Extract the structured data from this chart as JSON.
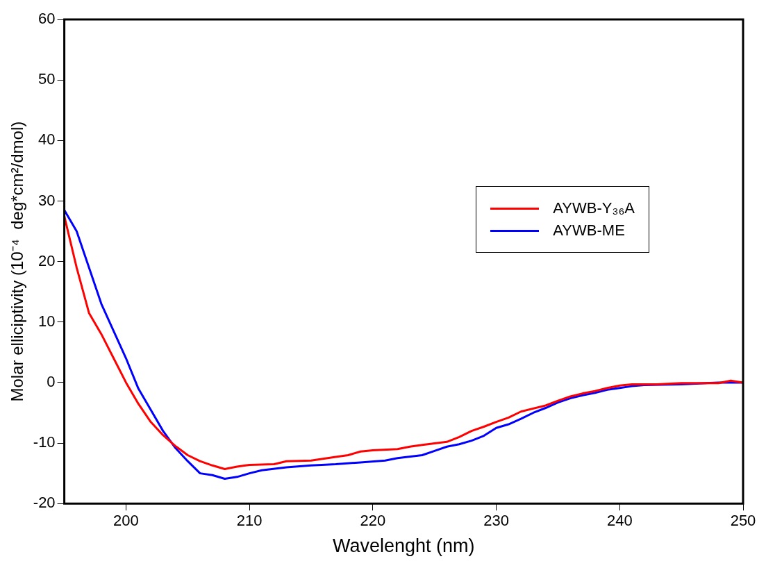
{
  "chart_data": {
    "type": "line",
    "xlabel": "Wavelenght (nm)",
    "ylabel": "Molar elliciptivity (10⁻⁴  deg*cm²/dmol)",
    "xlim": [
      195,
      250
    ],
    "xticks": [
      200,
      210,
      220,
      230,
      240,
      250
    ],
    "ylim": [
      -20,
      60
    ],
    "yticks": [
      -20,
      -10,
      0,
      10,
      20,
      30,
      40,
      50,
      60
    ],
    "grid": false,
    "legend": "right",
    "marker": "none",
    "line_style": "solid",
    "series": [
      {
        "name": "AYWB-Y₃₆A",
        "color": "#ff0000",
        "x": [
          195,
          196,
          197,
          198,
          199,
          200,
          201,
          202,
          203,
          204,
          205,
          206,
          207,
          208,
          209,
          210,
          212,
          213,
          215,
          217,
          218,
          219,
          220,
          222,
          223,
          224,
          226,
          227,
          228,
          229,
          230,
          231,
          232,
          234,
          235,
          236,
          237,
          238,
          239,
          240,
          241,
          243,
          245,
          248,
          249,
          250
        ],
        "values": [
          27.5,
          19,
          11.5,
          8,
          4,
          0,
          -3.5,
          -6.5,
          -8.7,
          -10.5,
          -12,
          -13,
          -13.7,
          -14.3,
          -13.9,
          -13.6,
          -13.5,
          -13,
          -12.9,
          -12.3,
          -12,
          -11.4,
          -11.2,
          -11,
          -10.6,
          -10.3,
          -9.8,
          -9,
          -8,
          -7.3,
          -6.5,
          -5.8,
          -4.8,
          -3.8,
          -3,
          -2.3,
          -1.8,
          -1.4,
          -0.9,
          -0.5,
          -0.3,
          -0.3,
          -0.1,
          -0.1,
          0.3,
          0
        ]
      },
      {
        "name": "AYWB-ME",
        "color": "#0000ff",
        "x": [
          195,
          196,
          197,
          198,
          199,
          200,
          201,
          202,
          203,
          204,
          205,
          206,
          207,
          208,
          209,
          210,
          211,
          213,
          215,
          217,
          219,
          221,
          222,
          224,
          225,
          226,
          227,
          228,
          229,
          230,
          231,
          232,
          233,
          234,
          235,
          236,
          237,
          238,
          239,
          240,
          241,
          242,
          245,
          248,
          250
        ],
        "values": [
          28.5,
          25,
          19,
          13,
          8.5,
          4,
          -1,
          -4.5,
          -8,
          -10.8,
          -13,
          -15,
          -15.3,
          -15.9,
          -15.6,
          -15,
          -14.5,
          -14,
          -13.7,
          -13.5,
          -13.2,
          -12.9,
          -12.5,
          -12,
          -11.3,
          -10.6,
          -10.2,
          -9.6,
          -8.8,
          -7.5,
          -6.9,
          -6,
          -5,
          -4.2,
          -3.3,
          -2.6,
          -2.1,
          -1.7,
          -1.2,
          -0.9,
          -0.6,
          -0.4,
          -0.3,
          0,
          0
        ]
      }
    ]
  }
}
